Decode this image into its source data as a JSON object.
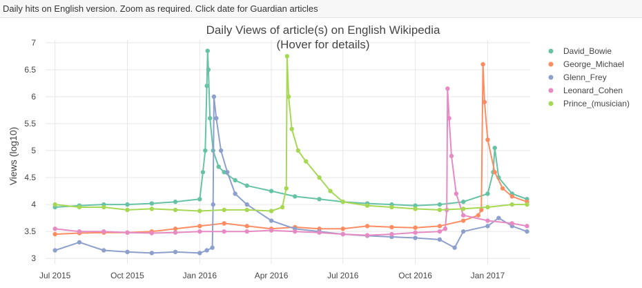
{
  "page": {
    "caption": "Daily hits on English version. Zoom as required. Click date for Guardian articles"
  },
  "chart_data": {
    "type": "line",
    "title": "Daily Views of article(s) on English Wikipedia",
    "subtitle": "(Hover for details)",
    "xlabel": "",
    "ylabel": "Views (log10)",
    "x_range": [
      "2015-06-19",
      "2017-02-24"
    ],
    "ylim": [
      2.9,
      7.05
    ],
    "y_ticks": [
      3,
      3.5,
      4,
      4.5,
      5,
      5.5,
      6,
      6.5,
      7
    ],
    "y_tick_labels": [
      "3",
      "3.5",
      "4",
      "4.5",
      "5",
      "5.5",
      "6",
      "6.5",
      "7"
    ],
    "x_ticks": [
      "2015-07-01",
      "2015-10-01",
      "2016-01-01",
      "2016-04-01",
      "2016-07-01",
      "2016-10-01",
      "2017-01-01"
    ],
    "x_tick_labels": [
      "Jul 2015",
      "Oct 2015",
      "Jan 2016",
      "Apr 2016",
      "Jul 2016",
      "Oct 2016",
      "Jan 2017"
    ],
    "grid": true,
    "legend": "top-right",
    "series": [
      {
        "name": "David_Bowie",
        "color": "#66c2a5",
        "x": [
          "2015-07-01",
          "2015-08-01",
          "2015-09-01",
          "2015-10-01",
          "2015-11-01",
          "2015-12-01",
          "2016-01-01",
          "2016-01-05",
          "2016-01-08",
          "2016-01-10",
          "2016-01-11",
          "2016-01-12",
          "2016-01-14",
          "2016-01-18",
          "2016-01-25",
          "2016-02-01",
          "2016-02-15",
          "2016-03-01",
          "2016-04-01",
          "2016-05-01",
          "2016-06-01",
          "2016-07-01",
          "2016-08-01",
          "2016-09-01",
          "2016-10-01",
          "2016-11-01",
          "2016-12-01",
          "2017-01-01",
          "2017-01-08",
          "2017-01-10",
          "2017-01-15",
          "2017-02-01",
          "2017-02-20"
        ],
        "values": [
          3.95,
          3.98,
          4.0,
          4.0,
          4.02,
          4.05,
          4.1,
          4.6,
          5.0,
          6.2,
          6.85,
          6.5,
          5.6,
          5.0,
          4.7,
          4.6,
          4.45,
          4.35,
          4.25,
          4.15,
          4.1,
          4.05,
          4.02,
          4.0,
          3.98,
          4.0,
          4.05,
          4.2,
          4.6,
          5.05,
          4.5,
          4.2,
          4.1
        ]
      },
      {
        "name": "George_Michael",
        "color": "#fc8d62",
        "x": [
          "2015-07-01",
          "2015-08-01",
          "2015-09-01",
          "2015-10-01",
          "2015-11-01",
          "2015-12-01",
          "2016-01-01",
          "2016-02-01",
          "2016-03-01",
          "2016-04-01",
          "2016-05-01",
          "2016-06-01",
          "2016-07-01",
          "2016-08-01",
          "2016-09-01",
          "2016-10-01",
          "2016-11-01",
          "2016-12-01",
          "2016-12-20",
          "2016-12-24",
          "2016-12-26",
          "2016-12-28",
          "2017-01-01",
          "2017-01-10",
          "2017-01-20",
          "2017-02-01",
          "2017-02-20"
        ],
        "values": [
          3.45,
          3.47,
          3.48,
          3.48,
          3.5,
          3.55,
          3.6,
          3.65,
          3.6,
          3.55,
          3.58,
          3.55,
          3.55,
          3.6,
          3.58,
          3.57,
          3.6,
          3.7,
          3.8,
          3.9,
          6.6,
          5.9,
          5.2,
          4.6,
          4.3,
          4.15,
          4.05
        ]
      },
      {
        "name": "Glenn_Frey",
        "color": "#8da0cb",
        "x": [
          "2015-07-01",
          "2015-08-01",
          "2015-09-01",
          "2015-10-01",
          "2015-11-01",
          "2015-12-01",
          "2016-01-01",
          "2016-01-10",
          "2016-01-17",
          "2016-01-18",
          "2016-01-19",
          "2016-01-22",
          "2016-01-28",
          "2016-02-05",
          "2016-02-15",
          "2016-03-01",
          "2016-04-01",
          "2016-05-01",
          "2016-06-01",
          "2016-07-01",
          "2016-08-01",
          "2016-09-01",
          "2016-10-01",
          "2016-11-01",
          "2016-11-20",
          "2016-12-01",
          "2017-01-01",
          "2017-01-15",
          "2017-02-01",
          "2017-02-20"
        ],
        "values": [
          3.15,
          3.3,
          3.15,
          3.12,
          3.1,
          3.12,
          3.1,
          3.15,
          3.2,
          4.0,
          6.0,
          5.6,
          5.0,
          4.6,
          4.2,
          4.0,
          3.7,
          3.55,
          3.5,
          3.45,
          3.42,
          3.4,
          3.38,
          3.35,
          3.2,
          3.5,
          3.6,
          3.75,
          3.6,
          3.5
        ]
      },
      {
        "name": "Leonard_Cohen",
        "color": "#e78ac3",
        "x": [
          "2015-07-01",
          "2015-08-01",
          "2015-09-01",
          "2015-10-01",
          "2015-11-01",
          "2015-12-01",
          "2016-01-01",
          "2016-02-01",
          "2016-03-01",
          "2016-04-01",
          "2016-05-01",
          "2016-06-01",
          "2016-07-01",
          "2016-08-01",
          "2016-09-01",
          "2016-10-01",
          "2016-11-01",
          "2016-11-08",
          "2016-11-10",
          "2016-11-11",
          "2016-11-13",
          "2016-11-16",
          "2016-11-22",
          "2016-12-01",
          "2017-01-01",
          "2017-02-01",
          "2017-02-20"
        ],
        "values": [
          3.55,
          3.5,
          3.5,
          3.48,
          3.47,
          3.48,
          3.5,
          3.5,
          3.5,
          3.52,
          3.5,
          3.48,
          3.45,
          3.43,
          3.45,
          3.48,
          3.5,
          3.55,
          3.9,
          6.15,
          5.6,
          4.9,
          4.2,
          3.8,
          3.7,
          3.65,
          3.6
        ]
      },
      {
        "name": "Prince_(musician)",
        "color": "#a6d854",
        "x": [
          "2015-07-01",
          "2015-08-01",
          "2015-09-01",
          "2015-10-01",
          "2015-11-01",
          "2015-12-01",
          "2016-01-01",
          "2016-02-01",
          "2016-03-01",
          "2016-04-01",
          "2016-04-15",
          "2016-04-20",
          "2016-04-21",
          "2016-04-23",
          "2016-04-27",
          "2016-05-05",
          "2016-05-15",
          "2016-06-01",
          "2016-06-15",
          "2016-07-01",
          "2016-08-01",
          "2016-09-01",
          "2016-10-01",
          "2016-11-01",
          "2016-12-01",
          "2017-01-01",
          "2017-02-01",
          "2017-02-20"
        ],
        "values": [
          4.0,
          3.95,
          3.95,
          3.9,
          3.92,
          3.9,
          3.88,
          3.9,
          3.9,
          3.88,
          3.95,
          4.3,
          6.75,
          6.0,
          5.4,
          5.0,
          4.8,
          4.5,
          4.25,
          4.05,
          3.98,
          3.95,
          3.92,
          3.9,
          3.92,
          3.95,
          4.0,
          4.0
        ]
      }
    ]
  }
}
